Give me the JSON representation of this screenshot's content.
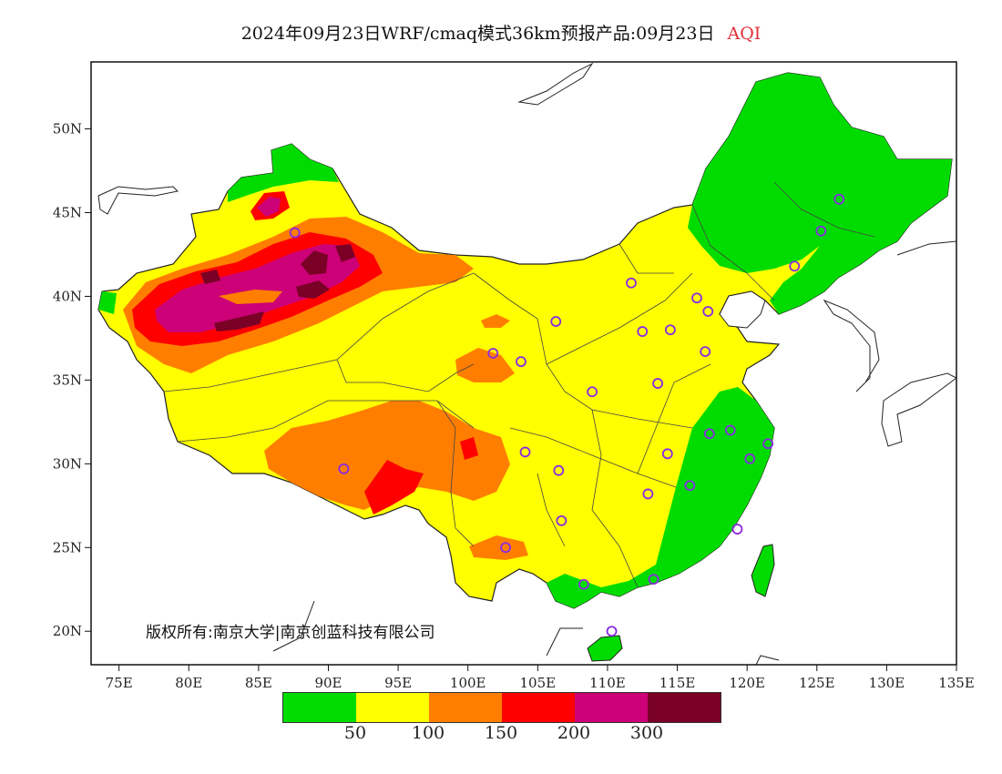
{
  "title": {
    "text": "2024年09月23日WRF/cmaq模式36km预报产品:09月23日",
    "variable": "AQI"
  },
  "copyright": "版权所有:南京大学|南京创蓝科技有限公司",
  "axes": {
    "lon_ticks": [
      "75E",
      "80E",
      "85E",
      "90E",
      "95E",
      "100E",
      "105E",
      "110E",
      "115E",
      "120E",
      "125E",
      "130E",
      "135E"
    ],
    "lat_ticks": [
      "20N",
      "25N",
      "30N",
      "35N",
      "40N",
      "45N",
      "50N"
    ],
    "lon_range": [
      73,
      135
    ],
    "lat_range": [
      18,
      54
    ]
  },
  "legend": {
    "colors": [
      "#00dc00",
      "#ffff00",
      "#ff7e00",
      "#ff0000",
      "#cc0077",
      "#7a0026"
    ],
    "labels": [
      "50",
      "100",
      "150",
      "200",
      "300"
    ]
  },
  "stations": [
    [
      87.6,
      43.8
    ],
    [
      91.1,
      29.7
    ],
    [
      101.8,
      36.6
    ],
    [
      103.8,
      36.1
    ],
    [
      106.3,
      38.5
    ],
    [
      108.9,
      34.3
    ],
    [
      104.1,
      30.7
    ],
    [
      106.5,
      29.6
    ],
    [
      106.7,
      26.6
    ],
    [
      102.7,
      25.0
    ],
    [
      108.3,
      22.8
    ],
    [
      110.3,
      20.0
    ],
    [
      113.3,
      23.1
    ],
    [
      112.9,
      28.2
    ],
    [
      114.3,
      30.6
    ],
    [
      115.9,
      28.7
    ],
    [
      117.3,
      31.8
    ],
    [
      118.8,
      32.0
    ],
    [
      120.2,
      30.3
    ],
    [
      121.5,
      31.2
    ],
    [
      119.3,
      26.1
    ],
    [
      117.0,
      36.7
    ],
    [
      113.6,
      34.8
    ],
    [
      112.5,
      37.9
    ],
    [
      114.5,
      38.0
    ],
    [
      116.4,
      39.9
    ],
    [
      117.2,
      39.1
    ],
    [
      111.7,
      40.8
    ],
    [
      123.4,
      41.8
    ],
    [
      125.3,
      43.9
    ],
    [
      126.6,
      45.8
    ]
  ]
}
